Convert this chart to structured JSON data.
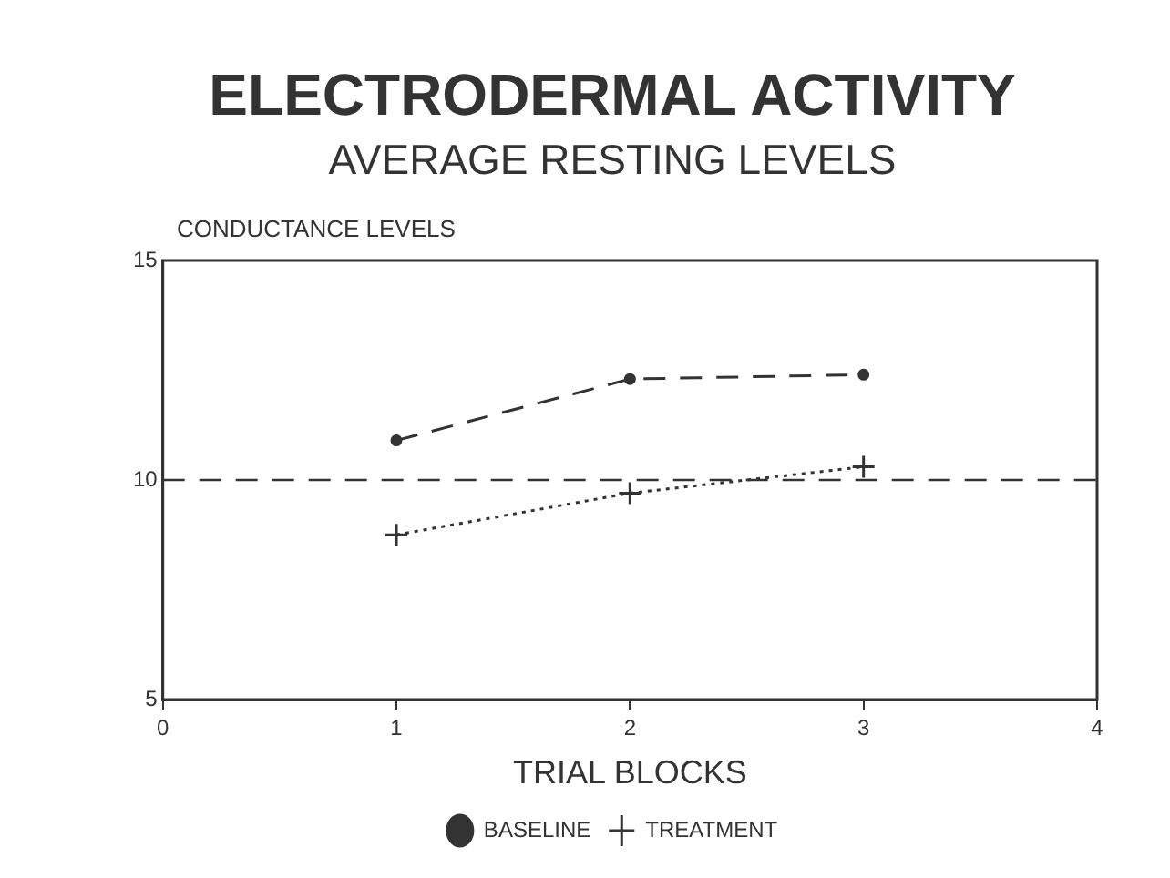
{
  "chart_data": {
    "type": "line",
    "title": "ELECTRODERMAL ACTIVITY",
    "subtitle": "AVERAGE RESTING LEVELS",
    "xlabel": "TRIAL BLOCKS",
    "ylabel": "CONDUCTANCE LEVELS",
    "x": [
      1,
      2,
      3
    ],
    "xlim": [
      0,
      4
    ],
    "xticks": [
      0,
      1,
      2,
      3,
      4
    ],
    "ylim": [
      5,
      15
    ],
    "yticks": [
      5,
      10,
      15
    ],
    "series": [
      {
        "name": "BASELINE",
        "color": "#333333",
        "values": [
          10.9,
          12.3,
          12.4
        ],
        "marker": "circle",
        "line_style": "dashed"
      },
      {
        "name": "TREATMENT",
        "color": "#333333",
        "values": [
          8.75,
          9.7,
          10.3
        ],
        "marker": "cross",
        "line_style": "dotted"
      }
    ],
    "ref_lines": [
      {
        "axis": "y",
        "value": 10,
        "color": "#333333",
        "line_style": "dashed"
      }
    ],
    "legend": "bottom",
    "grid": false
  }
}
